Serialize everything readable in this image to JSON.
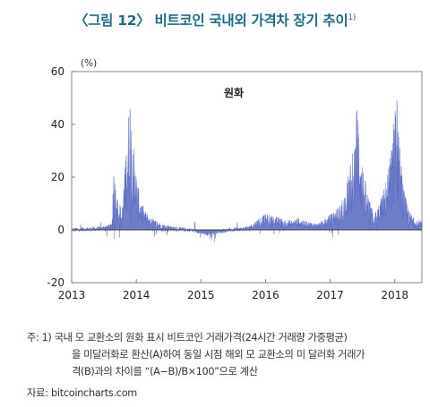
{
  "title_main": "〈그림 12〉 비트코인 국내외 가격차 장기 추이",
  "title_footnote_marker": "1)",
  "chart_data": {
    "type": "area",
    "title": "〈그림 12〉 비트코인 국내외 가격차 장기 추이",
    "unit_label": "(%)",
    "series_label": "원화",
    "xlabel": "",
    "ylabel": "",
    "xlim": [
      2013.0,
      2018.42
    ],
    "ylim": [
      -20,
      60
    ],
    "yticks": [
      "-20",
      "0",
      "20",
      "40",
      "60"
    ],
    "xticks": [
      {
        "label": "2013",
        "value": 2013
      },
      {
        "label": "2014",
        "value": 2014
      },
      {
        "label": "2015",
        "value": 2015
      },
      {
        "label": "2016",
        "value": 2016
      },
      {
        "label": "2017",
        "value": 2017
      },
      {
        "label": "2018",
        "value": 2018
      }
    ],
    "grid": false,
    "color": "#5567c0",
    "profile": [
      [
        2013.0,
        0
      ],
      [
        2013.2,
        0.5
      ],
      [
        2013.45,
        1
      ],
      [
        2013.62,
        2
      ],
      [
        2013.66,
        22
      ],
      [
        2013.72,
        10
      ],
      [
        2013.78,
        6
      ],
      [
        2013.82,
        20
      ],
      [
        2013.88,
        38
      ],
      [
        2013.92,
        50
      ],
      [
        2013.96,
        30
      ],
      [
        2014.0,
        18
      ],
      [
        2014.06,
        10
      ],
      [
        2014.14,
        6
      ],
      [
        2014.22,
        4
      ],
      [
        2014.4,
        2
      ],
      [
        2014.6,
        1
      ],
      [
        2014.8,
        0
      ],
      [
        2014.95,
        -1
      ],
      [
        2015.1,
        -2
      ],
      [
        2015.3,
        -1
      ],
      [
        2015.5,
        0
      ],
      [
        2015.7,
        1
      ],
      [
        2015.8,
        2
      ],
      [
        2015.9,
        4
      ],
      [
        2016.0,
        5
      ],
      [
        2016.2,
        4
      ],
      [
        2016.4,
        3
      ],
      [
        2016.5,
        4
      ],
      [
        2016.6,
        3
      ],
      [
        2016.8,
        2
      ],
      [
        2016.95,
        4
      ],
      [
        2017.05,
        6
      ],
      [
        2017.15,
        8
      ],
      [
        2017.25,
        14
      ],
      [
        2017.32,
        22
      ],
      [
        2017.38,
        28
      ],
      [
        2017.42,
        45
      ],
      [
        2017.46,
        30
      ],
      [
        2017.52,
        18
      ],
      [
        2017.6,
        10
      ],
      [
        2017.68,
        5
      ],
      [
        2017.75,
        8
      ],
      [
        2017.82,
        12
      ],
      [
        2017.88,
        18
      ],
      [
        2017.94,
        25
      ],
      [
        2017.98,
        35
      ],
      [
        2018.01,
        48
      ],
      [
        2018.04,
        40
      ],
      [
        2018.08,
        25
      ],
      [
        2018.15,
        12
      ],
      [
        2018.22,
        6
      ],
      [
        2018.3,
        4
      ],
      [
        2018.42,
        3
      ]
    ]
  },
  "notes": {
    "line1": "주: 1) 국내 모 교환소의 원화 표시 비트코인 거래가격(24시간 거래량 가중평균)",
    "line2": "을 미달러화로 환산(A)하여 동일 시점 해외 모 교환소의 미 달러화 거래가",
    "line3": "격(B)과의 차이를 “(A−B)/B×100”으로 계산"
  },
  "source": "자료: bitcoincharts.com"
}
